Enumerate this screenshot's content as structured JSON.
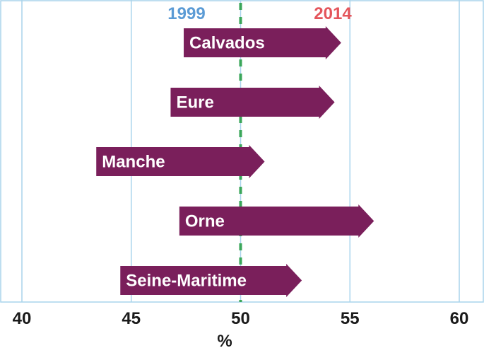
{
  "chart_data": {
    "type": "bar",
    "categories": [
      "Calvados",
      "Eure",
      "Manche",
      "Orne",
      "Seine-Maritime"
    ],
    "series": [
      {
        "name": "1999",
        "values": [
          47.4,
          46.8,
          43.4,
          47.2,
          44.5
        ]
      },
      {
        "name": "2014",
        "values": [
          54.6,
          54.3,
          51.1,
          56.1,
          52.8
        ]
      }
    ],
    "xlabel": "%",
    "xlim": [
      40,
      60
    ],
    "xticks": [
      40,
      45,
      50,
      55,
      60
    ],
    "reference_line": 50,
    "grid": true,
    "legend_placement": "top-center",
    "colors": {
      "bar": "#7a1f5b",
      "grid": "#a9d4ec",
      "reference_line": "#3aa65a",
      "legend_1999": "#5b9bd5",
      "legend_2014": "#e4555b"
    }
  }
}
